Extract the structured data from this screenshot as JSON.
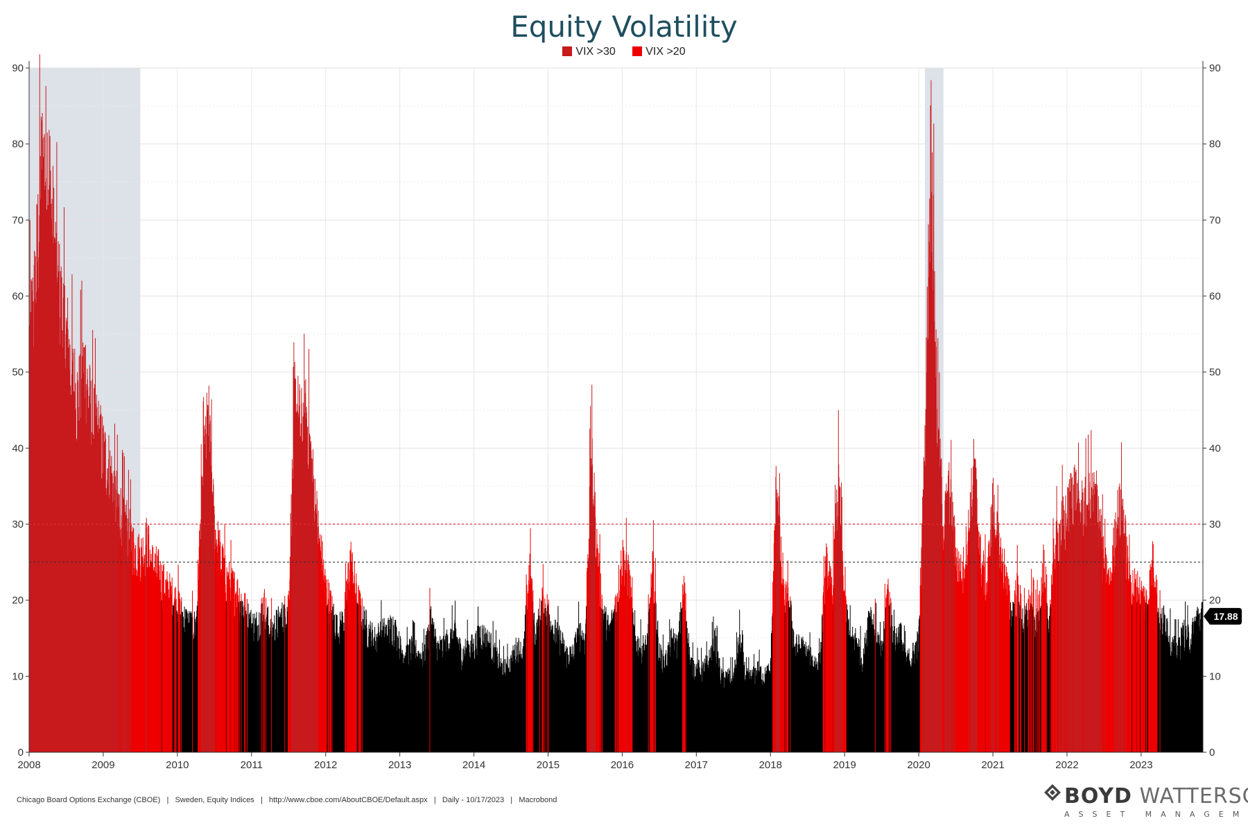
{
  "chart_data": {
    "type": "area",
    "title": "Equity Volatility",
    "legend": [
      {
        "name": "VIX >30",
        "color": "#c8191c"
      },
      {
        "name": "VIX >20",
        "color": "#ee0000"
      }
    ],
    "legend_position": "top-center",
    "base_color": "#000000",
    "ylim": [
      0,
      90
    ],
    "y_ticks": [
      0,
      10,
      20,
      30,
      40,
      50,
      60,
      70,
      80,
      90
    ],
    "x_range": [
      "2008-01",
      "2023-10"
    ],
    "x_tick_labels": [
      "2008",
      "2009",
      "2010",
      "2011",
      "2012",
      "2013",
      "2014",
      "2015",
      "2016",
      "2017",
      "2018",
      "2019",
      "2020",
      "2021",
      "2022",
      "2023"
    ],
    "grid": true,
    "reference_lines": [
      {
        "value": 30,
        "color": "#e03030",
        "style": "dashed"
      },
      {
        "value": 25,
        "color": "#333333",
        "style": "dashed"
      }
    ],
    "shaded_periods": [
      {
        "start": "2008-01",
        "end": "2009-06"
      },
      {
        "start": "2020-02",
        "end": "2020-04"
      }
    ],
    "last_value_label": "17.88",
    "series_points": [
      [
        "2008-01",
        55
      ],
      [
        "2008-02",
        62
      ],
      [
        "2008-03",
        78
      ],
      [
        "2008-04",
        80
      ],
      [
        "2008-05",
        68
      ],
      [
        "2008-06",
        60
      ],
      [
        "2008-07",
        56
      ],
      [
        "2008-08",
        50
      ],
      [
        "2008-09",
        47
      ],
      [
        "2008-10",
        52
      ],
      [
        "2008-11",
        45
      ],
      [
        "2008-12",
        43
      ],
      [
        "2009-01",
        40
      ],
      [
        "2009-02",
        38
      ],
      [
        "2009-03",
        34
      ],
      [
        "2009-04",
        32
      ],
      [
        "2009-05",
        30
      ],
      [
        "2009-06",
        27
      ],
      [
        "2009-07",
        26
      ],
      [
        "2009-08",
        28
      ],
      [
        "2009-09",
        25
      ],
      [
        "2009-10",
        24
      ],
      [
        "2009-11",
        22
      ],
      [
        "2009-12",
        21
      ],
      [
        "2010-01",
        20
      ],
      [
        "2010-02",
        18
      ],
      [
        "2010-03",
        17
      ],
      [
        "2010-04",
        17
      ],
      [
        "2010-05",
        35
      ],
      [
        "2010-06",
        45
      ],
      [
        "2010-07",
        30
      ],
      [
        "2010-08",
        26
      ],
      [
        "2010-09",
        23
      ],
      [
        "2010-10",
        22
      ],
      [
        "2010-11",
        21
      ],
      [
        "2010-12",
        19
      ],
      [
        "2011-01",
        17
      ],
      [
        "2011-02",
        17
      ],
      [
        "2011-03",
        20
      ],
      [
        "2011-04",
        16
      ],
      [
        "2011-05",
        17
      ],
      [
        "2011-06",
        18
      ],
      [
        "2011-07",
        20
      ],
      [
        "2011-08",
        47
      ],
      [
        "2011-09",
        43
      ],
      [
        "2011-10",
        45
      ],
      [
        "2011-11",
        36
      ],
      [
        "2011-12",
        28
      ],
      [
        "2012-01",
        22
      ],
      [
        "2012-02",
        19
      ],
      [
        "2012-03",
        16
      ],
      [
        "2012-04",
        18
      ],
      [
        "2012-05",
        26
      ],
      [
        "2012-06",
        21
      ],
      [
        "2012-07",
        18
      ],
      [
        "2012-08",
        16
      ],
      [
        "2012-09",
        15
      ],
      [
        "2012-10",
        16
      ],
      [
        "2012-11",
        16
      ],
      [
        "2012-12",
        17
      ],
      [
        "2013-01",
        14
      ],
      [
        "2013-02",
        13
      ],
      [
        "2013-03",
        14
      ],
      [
        "2013-04",
        13
      ],
      [
        "2013-05",
        13
      ],
      [
        "2013-06",
        18
      ],
      [
        "2013-07",
        14
      ],
      [
        "2013-08",
        14
      ],
      [
        "2013-09",
        15
      ],
      [
        "2013-10",
        16
      ],
      [
        "2013-11",
        13
      ],
      [
        "2013-12",
        14
      ],
      [
        "2014-01",
        14
      ],
      [
        "2014-02",
        16
      ],
      [
        "2014-03",
        15
      ],
      [
        "2014-04",
        14
      ],
      [
        "2014-05",
        12
      ],
      [
        "2014-06",
        11
      ],
      [
        "2014-07",
        12
      ],
      [
        "2014-08",
        14
      ],
      [
        "2014-09",
        13
      ],
      [
        "2014-10",
        25
      ],
      [
        "2014-11",
        15
      ],
      [
        "2014-12",
        20
      ],
      [
        "2015-01",
        19
      ],
      [
        "2015-02",
        16
      ],
      [
        "2015-03",
        15
      ],
      [
        "2015-04",
        13
      ],
      [
        "2015-05",
        13
      ],
      [
        "2015-06",
        16
      ],
      [
        "2015-07",
        15
      ],
      [
        "2015-08",
        40
      ],
      [
        "2015-09",
        26
      ],
      [
        "2015-10",
        18
      ],
      [
        "2015-11",
        16
      ],
      [
        "2015-12",
        20
      ],
      [
        "2016-01",
        26
      ],
      [
        "2016-02",
        24
      ],
      [
        "2016-03",
        15
      ],
      [
        "2016-04",
        14
      ],
      [
        "2016-05",
        14
      ],
      [
        "2016-06",
        25
      ],
      [
        "2016-07",
        13
      ],
      [
        "2016-08",
        12
      ],
      [
        "2016-09",
        15
      ],
      [
        "2016-10",
        14
      ],
      [
        "2016-11",
        22
      ],
      [
        "2016-12",
        12
      ],
      [
        "2017-01",
        11
      ],
      [
        "2017-02",
        11
      ],
      [
        "2017-03",
        12
      ],
      [
        "2017-04",
        15
      ],
      [
        "2017-05",
        10
      ],
      [
        "2017-06",
        10
      ],
      [
        "2017-07",
        10
      ],
      [
        "2017-08",
        15
      ],
      [
        "2017-09",
        10
      ],
      [
        "2017-10",
        10
      ],
      [
        "2017-11",
        11
      ],
      [
        "2017-12",
        10
      ],
      [
        "2018-01",
        11
      ],
      [
        "2018-02",
        37
      ],
      [
        "2018-03",
        21
      ],
      [
        "2018-04",
        20
      ],
      [
        "2018-05",
        14
      ],
      [
        "2018-06",
        14
      ],
      [
        "2018-07",
        13
      ],
      [
        "2018-08",
        12
      ],
      [
        "2018-09",
        12
      ],
      [
        "2018-10",
        25
      ],
      [
        "2018-11",
        21
      ],
      [
        "2018-12",
        36
      ],
      [
        "2019-01",
        20
      ],
      [
        "2019-02",
        15
      ],
      [
        "2019-03",
        15
      ],
      [
        "2019-04",
        12
      ],
      [
        "2019-05",
        19
      ],
      [
        "2019-06",
        16
      ],
      [
        "2019-07",
        13
      ],
      [
        "2019-08",
        22
      ],
      [
        "2019-09",
        15
      ],
      [
        "2019-10",
        16
      ],
      [
        "2019-11",
        12
      ],
      [
        "2019-12",
        13
      ],
      [
        "2020-01",
        15
      ],
      [
        "2020-02",
        40
      ],
      [
        "2020-03",
        82
      ],
      [
        "2020-04",
        45
      ],
      [
        "2020-05",
        30
      ],
      [
        "2020-06",
        35
      ],
      [
        "2020-07",
        26
      ],
      [
        "2020-08",
        23
      ],
      [
        "2020-09",
        29
      ],
      [
        "2020-10",
        38
      ],
      [
        "2020-11",
        26
      ],
      [
        "2020-12",
        22
      ],
      [
        "2021-01",
        33
      ],
      [
        "2021-02",
        27
      ],
      [
        "2021-03",
        24
      ],
      [
        "2021-04",
        18
      ],
      [
        "2021-05",
        22
      ],
      [
        "2021-06",
        17
      ],
      [
        "2021-07",
        20
      ],
      [
        "2021-08",
        17
      ],
      [
        "2021-09",
        23
      ],
      [
        "2021-10",
        17
      ],
      [
        "2021-11",
        27
      ],
      [
        "2021-12",
        30
      ],
      [
        "2022-01",
        31
      ],
      [
        "2022-02",
        36
      ],
      [
        "2022-03",
        32
      ],
      [
        "2022-04",
        33
      ],
      [
        "2022-05",
        34
      ],
      [
        "2022-06",
        34
      ],
      [
        "2022-07",
        25
      ],
      [
        "2022-08",
        22
      ],
      [
        "2022-09",
        31
      ],
      [
        "2022-10",
        33
      ],
      [
        "2022-11",
        23
      ],
      [
        "2022-12",
        22
      ],
      [
        "2023-01",
        21
      ],
      [
        "2023-02",
        20
      ],
      [
        "2023-03",
        26
      ],
      [
        "2023-04",
        17
      ],
      [
        "2023-05",
        18
      ],
      [
        "2023-06",
        14
      ],
      [
        "2023-07",
        14
      ],
      [
        "2023-08",
        16
      ],
      [
        "2023-09",
        15
      ],
      [
        "2023-10",
        18
      ]
    ]
  },
  "footer": {
    "source": "Chicago Board Options Exchange (CBOE)   |   Sweden, Equity Indices   |   http://www.cboe.com/AboutCBOE/Default.aspx   |   Daily - 10/17/2023   |   Macrobond"
  },
  "logo": {
    "name_bold": "BOYD",
    "name_light": "WATTERSON",
    "tagline": "ASSET MANAGEMENT"
  }
}
